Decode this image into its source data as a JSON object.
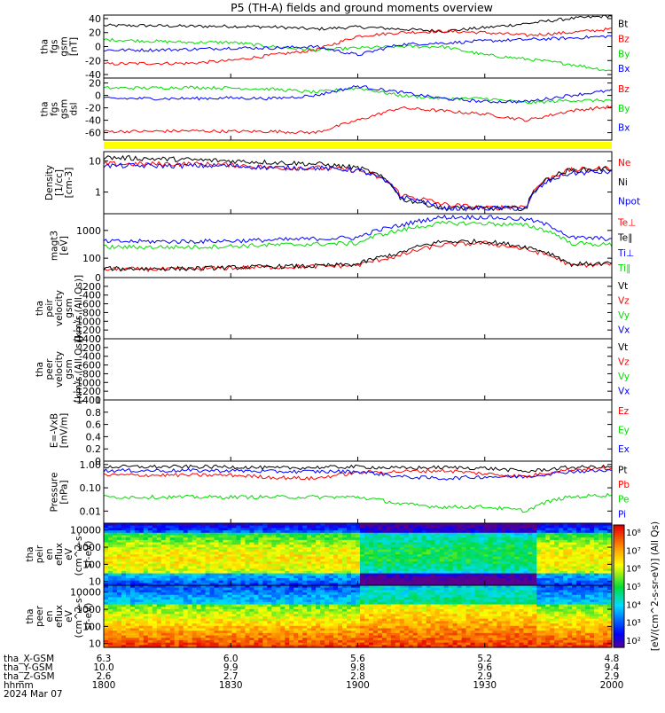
{
  "title": "P5 (TH-A) fields and ground moments overview",
  "colors": {
    "black": "#000000",
    "red": "#ff0000",
    "green": "#00dd00",
    "blue": "#0000ff",
    "yellow": "#ffff00"
  },
  "panels": [
    {
      "id": "fgs-gsm",
      "ylabel_lines": [
        "tha",
        "fgs",
        "gsm",
        "[nT]"
      ],
      "ticks": [
        40,
        20,
        0,
        -20,
        -40
      ],
      "ylim": [
        -45,
        45
      ],
      "legend": [
        {
          "label": "Bt",
          "color": "black"
        },
        {
          "label": "Bz",
          "color": "red"
        },
        {
          "label": "By",
          "color": "green"
        },
        {
          "label": "Bx",
          "color": "blue"
        }
      ]
    },
    {
      "id": "fgs-gse",
      "ylabel_lines": [
        "tha",
        "fgs",
        "gsm",
        "dsl"
      ],
      "ticks": [
        20,
        0,
        -20,
        -40,
        -60
      ],
      "ylim": [
        -72,
        28
      ],
      "legend": [
        {
          "label": "Bz",
          "color": "red"
        },
        {
          "label": "By",
          "color": "green"
        },
        {
          "label": "Bx",
          "color": "blue"
        }
      ]
    },
    {
      "id": "density",
      "ylabel_lines": [
        "Density",
        "[1/cc]",
        "[cm-3]"
      ],
      "ticks": [
        10,
        1
      ],
      "ylim_log": [
        0.2,
        20
      ],
      "legend": [
        {
          "label": "Ne",
          "color": "red"
        },
        {
          "label": "Ni",
          "color": "black"
        },
        {
          "label": "Npot",
          "color": "blue"
        }
      ]
    },
    {
      "id": "temperature",
      "ylabel_lines": [
        "magt3",
        "[eV]"
      ],
      "ticks": [
        1000,
        100
      ],
      "ylim_log": [
        20,
        4000
      ],
      "legend": [
        {
          "label": "Te⊥",
          "color": "red"
        },
        {
          "label": "Te∥",
          "color": "black"
        },
        {
          "label": "Ti⊥",
          "color": "blue"
        },
        {
          "label": "Ti∥",
          "color": "green"
        }
      ]
    },
    {
      "id": "peir-velocity",
      "ylabel_lines": [
        "tha",
        "peir",
        "velocity",
        "gsm",
        "[km/s (All Qs)]"
      ],
      "ticks": [
        0,
        -200,
        -400,
        -600,
        -800,
        -1000,
        -1200,
        -1400
      ],
      "ylim": [
        -1400,
        0
      ],
      "legend": [
        {
          "label": "Vt",
          "color": "black"
        },
        {
          "label": "Vz",
          "color": "red"
        },
        {
          "label": "Vy",
          "color": "green"
        },
        {
          "label": "Vx",
          "color": "blue"
        }
      ]
    },
    {
      "id": "peer-velocity",
      "ylabel_lines": [
        "tha",
        "peer",
        "velocity",
        "gsm",
        "[km/s (All Qs)]"
      ],
      "ticks": [
        0,
        -200,
        -400,
        -600,
        -800,
        -1000,
        -1200,
        -1400
      ],
      "ylim": [
        -1400,
        0
      ],
      "legend": [
        {
          "label": "Vt",
          "color": "black"
        },
        {
          "label": "Vz",
          "color": "red"
        },
        {
          "label": "Vy",
          "color": "green"
        },
        {
          "label": "Vx",
          "color": "blue"
        }
      ]
    },
    {
      "id": "efield",
      "ylabel_lines": [
        "E=-VxB",
        "[mV/m]"
      ],
      "ticks": [
        1.0,
        0.8,
        0.6,
        0.4,
        0.2,
        0.0
      ],
      "ylim": [
        0,
        1
      ],
      "legend": [
        {
          "label": "Ez",
          "color": "red"
        },
        {
          "label": "Ey",
          "color": "green"
        },
        {
          "label": "Ex",
          "color": "blue"
        }
      ]
    },
    {
      "id": "pressure",
      "ylabel_lines": [
        "Pressure",
        "[nPa]"
      ],
      "ticks": [
        1.0,
        0.1,
        0.01
      ],
      "ticklabels": [
        "1.00",
        "0.10",
        "0.01"
      ],
      "ylim_log": [
        0.003,
        1.4
      ],
      "legend": [
        {
          "label": "Pt",
          "color": "black"
        },
        {
          "label": "Pb",
          "color": "red"
        },
        {
          "label": "Pe",
          "color": "green"
        },
        {
          "label": "Pi",
          "color": "blue"
        }
      ]
    },
    {
      "id": "peir-spec",
      "ylabel_lines": [
        "tha",
        "peir",
        "en",
        "eflux",
        "eV",
        "(cm^2-s-",
        "sr-eV)"
      ],
      "ticks": [
        10000,
        1000,
        100,
        10
      ],
      "ylim_log": [
        6,
        25000
      ]
    },
    {
      "id": "peer-spec",
      "ylabel_lines": [
        "tha",
        "peer",
        "en",
        "eflux",
        "eV",
        "(cm^2-s-",
        "sr-eV)"
      ],
      "ticks": [
        10000,
        1000,
        100,
        10
      ],
      "ylim_log": [
        6,
        25000
      ]
    }
  ],
  "colorbar": {
    "label": "[eV/(cm^2-s-sr-eV)] (All Qs)",
    "ticks": [
      "10⁸",
      "10⁷",
      "10⁶",
      "10⁵",
      "10⁴",
      "10³",
      "10²"
    ]
  },
  "xaxis": {
    "hhmm": [
      "1800",
      "1830",
      "1900",
      "1930",
      "2000"
    ],
    "rows": [
      {
        "label": "tha_X-GSM",
        "values": [
          "6.3",
          "6.0",
          "5.6",
          "5.2",
          "4.8"
        ]
      },
      {
        "label": "tha_Y-GSM",
        "values": [
          "10.0",
          "9.9",
          "9.8",
          "9.6",
          "9.4"
        ]
      },
      {
        "label": "tha_Z-GSM",
        "values": [
          "2.6",
          "2.7",
          "2.8",
          "2.9",
          "2.9"
        ]
      }
    ],
    "hhmm_label": "hhmm",
    "date": "2024 Mar 07"
  },
  "chart_data": {
    "type": "line",
    "title": "P5 (TH-A) fields and ground moments overview",
    "x_range": [
      "18:00",
      "20:00"
    ],
    "x": [
      0,
      10,
      20,
      30,
      40,
      50,
      60,
      70,
      80,
      90,
      100,
      110,
      120
    ],
    "series": [
      {
        "panel": "fgs-gsm",
        "name": "Bt",
        "values": [
          30,
          30,
          29,
          29,
          28,
          25,
          28,
          25,
          22,
          27,
          33,
          40,
          44
        ]
      },
      {
        "panel": "fgs-gsm",
        "name": "Bz",
        "values": [
          -25,
          -24,
          -24,
          -20,
          -12,
          -5,
          15,
          20,
          22,
          20,
          16,
          20,
          25
        ]
      },
      {
        "panel": "fgs-gsm",
        "name": "By",
        "values": [
          10,
          8,
          6,
          6,
          0,
          -5,
          -2,
          0,
          0,
          -12,
          -18,
          -25,
          -35
        ]
      },
      {
        "panel": "fgs-gsm",
        "name": "Bx",
        "values": [
          -5,
          -5,
          -4,
          -2,
          -2,
          0,
          -12,
          3,
          5,
          8,
          10,
          12,
          15
        ]
      },
      {
        "panel": "fgs-gse",
        "name": "Bz",
        "values": [
          -58,
          -58,
          -57,
          -58,
          -58,
          -60,
          -40,
          -20,
          -25,
          -30,
          -40,
          -25,
          -18
        ]
      },
      {
        "panel": "fgs-gse",
        "name": "By",
        "values": [
          12,
          12,
          13,
          12,
          10,
          5,
          12,
          0,
          -5,
          -5,
          -12,
          -8,
          -8
        ]
      },
      {
        "panel": "fgs-gse",
        "name": "Bx",
        "values": [
          -5,
          -5,
          -5,
          -4,
          -5,
          0,
          15,
          5,
          -5,
          -10,
          -10,
          0,
          8
        ]
      },
      {
        "panel": "density",
        "name": "Ne",
        "values": [
          8,
          8,
          8,
          7.5,
          6,
          6,
          5,
          0.8,
          0.4,
          0.3,
          0.35,
          5,
          6
        ]
      },
      {
        "panel": "density",
        "name": "Ni",
        "values": [
          13,
          12,
          11,
          10,
          9,
          8,
          6,
          0.6,
          0.3,
          0.3,
          0.3,
          5,
          5.5
        ]
      },
      {
        "panel": "density",
        "name": "Npot",
        "values": [
          7,
          7,
          7,
          7,
          6,
          6,
          5,
          0.7,
          0.3,
          0.3,
          0.3,
          4,
          4.5
        ]
      },
      {
        "panel": "temperature",
        "name": "Te⊥",
        "values": [
          40,
          40,
          40,
          45,
          48,
          50,
          55,
          120,
          300,
          350,
          200,
          55,
          60
        ]
      },
      {
        "panel": "temperature",
        "name": "Te∥",
        "values": [
          42,
          42,
          42,
          46,
          50,
          52,
          60,
          150,
          400,
          400,
          250,
          60,
          65
        ]
      },
      {
        "panel": "temperature",
        "name": "Ti⊥",
        "values": [
          400,
          400,
          400,
          420,
          450,
          500,
          550,
          1500,
          3000,
          3000,
          2500,
          550,
          500
        ]
      },
      {
        "panel": "temperature",
        "name": "Ti∥",
        "values": [
          250,
          250,
          250,
          270,
          300,
          320,
          350,
          1000,
          1800,
          1800,
          1500,
          350,
          300
        ]
      },
      {
        "panel": "pressure",
        "name": "Pt",
        "values": [
          0.8,
          0.8,
          0.8,
          0.8,
          0.7,
          0.75,
          0.8,
          0.7,
          0.75,
          0.7,
          0.5,
          0.75,
          0.8
        ]
      },
      {
        "panel": "pressure",
        "name": "Pb",
        "values": [
          0.35,
          0.35,
          0.35,
          0.35,
          0.28,
          0.25,
          0.45,
          0.5,
          0.55,
          0.4,
          0.3,
          0.6,
          0.7
        ]
      },
      {
        "panel": "pressure",
        "name": "Pe",
        "values": [
          0.04,
          0.04,
          0.04,
          0.04,
          0.04,
          0.04,
          0.04,
          0.02,
          0.015,
          0.015,
          0.01,
          0.04,
          0.05
        ]
      },
      {
        "panel": "pressure",
        "name": "Pi",
        "values": [
          0.55,
          0.55,
          0.55,
          0.55,
          0.5,
          0.5,
          0.5,
          0.3,
          0.25,
          0.3,
          0.3,
          0.5,
          0.55
        ]
      }
    ],
    "spectrogram_log_range": [
      2,
      8
    ]
  }
}
